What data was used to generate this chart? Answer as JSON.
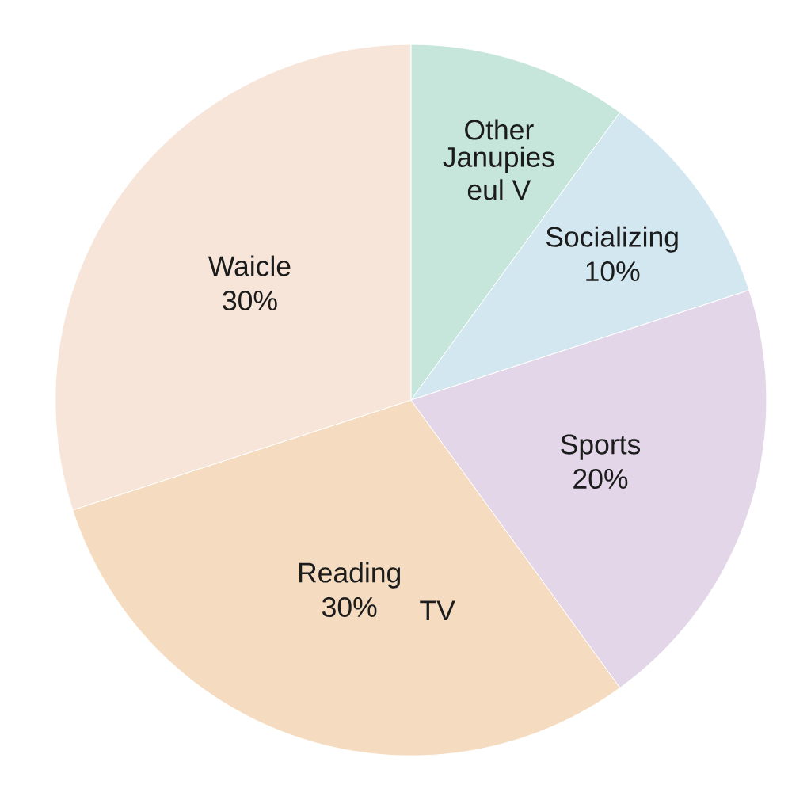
{
  "chart_data": {
    "type": "pie",
    "categories": [
      "Other",
      "Socializing",
      "Sports",
      "Reading",
      "Waicle"
    ],
    "values": [
      10,
      10,
      20,
      30,
      30
    ],
    "colors": [
      "#c6e6dc",
      "#d3e7f0",
      "#e3d6e8",
      "#f5dcc0",
      "#f6e5d8"
    ],
    "value_labels": [
      null,
      "10%",
      "20%",
      "30%",
      "30%"
    ],
    "annotations": [
      "TV",
      "Janupies",
      "eul V"
    ]
  }
}
